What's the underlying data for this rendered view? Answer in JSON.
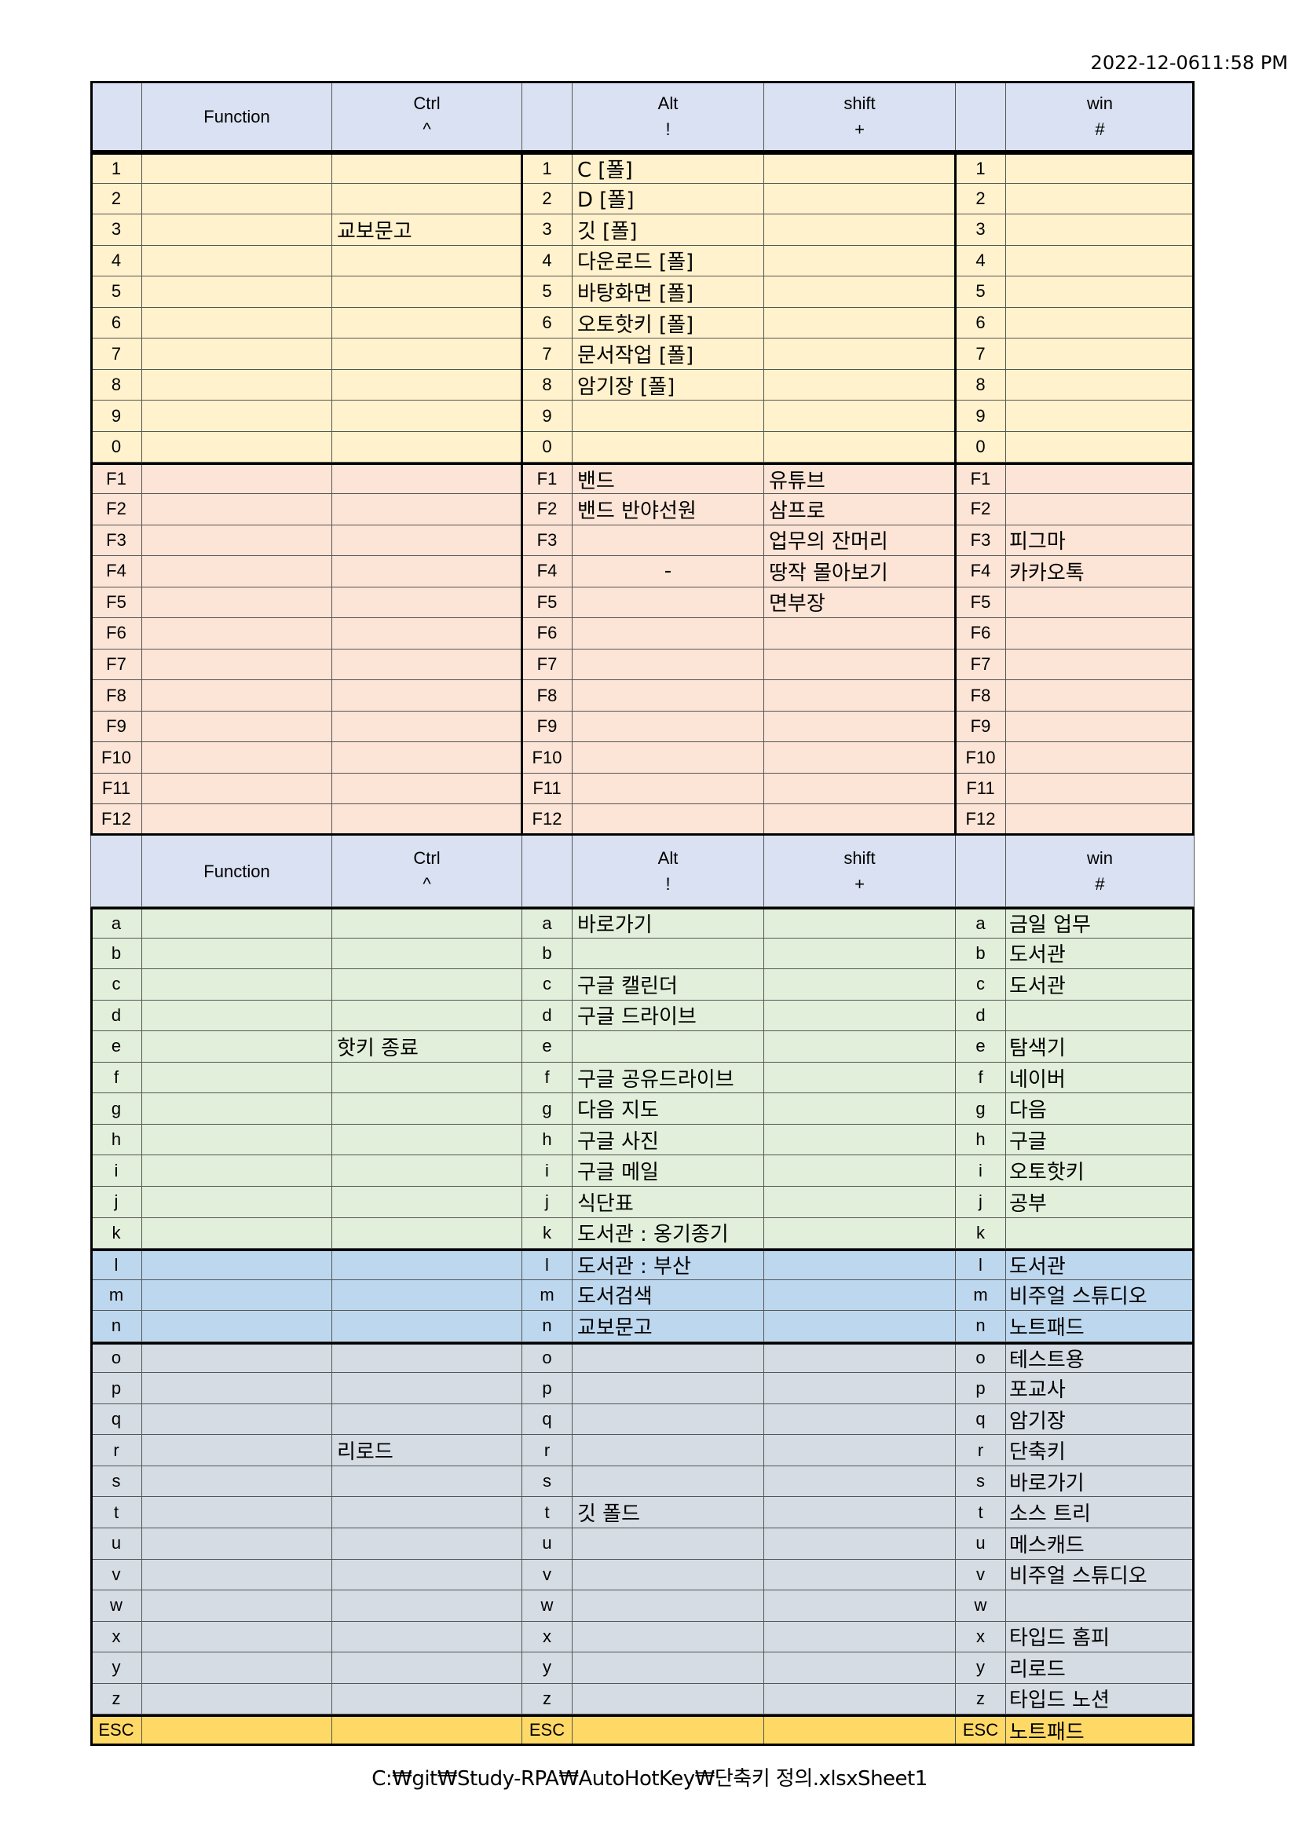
{
  "timestamp": "2022-12-0611:58 PM",
  "footer": "C:₩git₩Study-RPA₩AutoHotKey₩단축키 정의.xlsxSheet1",
  "colors": {
    "header": "#d9e1f2",
    "numbers": "#fff2cc",
    "function_keys": "#fce4d6",
    "letters_green": "#e2efda",
    "letters_blue": "#bdd7ee",
    "letters_gray": "#d6dce4",
    "escape": "#ffd966"
  },
  "header": {
    "function": "Function",
    "ctrl": "Ctrl",
    "ctrl_symbol": "^",
    "alt": "Alt",
    "alt_symbol": "!",
    "shift": "shift",
    "shift_symbol": "+",
    "win": "win",
    "win_symbol": "#"
  },
  "rows_top": [
    {
      "key": "1",
      "fn": "",
      "ctrl": "",
      "alt": "C [폴]",
      "shift": "",
      "win": "",
      "group": "numbers"
    },
    {
      "key": "2",
      "fn": "",
      "ctrl": "",
      "alt": "D [폴]",
      "shift": "",
      "win": "",
      "group": "numbers"
    },
    {
      "key": "3",
      "fn": "",
      "ctrl": "교보문고",
      "alt": "깃 [폴]",
      "shift": "",
      "win": "",
      "group": "numbers"
    },
    {
      "key": "4",
      "fn": "",
      "ctrl": "",
      "alt": "다운로드 [폴]",
      "shift": "",
      "win": "",
      "group": "numbers"
    },
    {
      "key": "5",
      "fn": "",
      "ctrl": "",
      "alt": "바탕화면 [폴]",
      "shift": "",
      "win": "",
      "group": "numbers"
    },
    {
      "key": "6",
      "fn": "",
      "ctrl": "",
      "alt": "오토핫키 [폴]",
      "shift": "",
      "win": "",
      "group": "numbers"
    },
    {
      "key": "7",
      "fn": "",
      "ctrl": "",
      "alt": "문서작업 [폴]",
      "shift": "",
      "win": "",
      "group": "numbers"
    },
    {
      "key": "8",
      "fn": "",
      "ctrl": "",
      "alt": "암기장 [폴]",
      "shift": "",
      "win": "",
      "group": "numbers"
    },
    {
      "key": "9",
      "fn": "",
      "ctrl": "",
      "alt": "",
      "shift": "",
      "win": "",
      "group": "numbers"
    },
    {
      "key": "0",
      "fn": "",
      "ctrl": "",
      "alt": "",
      "shift": "",
      "win": "",
      "group": "numbers"
    },
    {
      "key": "F1",
      "fn": "",
      "ctrl": "",
      "alt": "밴드",
      "shift": "유튜브",
      "win": "",
      "group": "function_keys"
    },
    {
      "key": "F2",
      "fn": "",
      "ctrl": "",
      "alt": "밴드 반야선원",
      "shift": "삼프로",
      "win": "",
      "group": "function_keys"
    },
    {
      "key": "F3",
      "fn": "",
      "ctrl": "",
      "alt": "",
      "shift": "업무의 잔머리",
      "win": "피그마",
      "group": "function_keys"
    },
    {
      "key": "F4",
      "fn": "",
      "ctrl": "",
      "alt": "-",
      "shift": "땅작 몰아보기",
      "win": "카카오톡",
      "group": "function_keys"
    },
    {
      "key": "F5",
      "fn": "",
      "ctrl": "",
      "alt": "",
      "shift": "면부장",
      "win": "",
      "group": "function_keys"
    },
    {
      "key": "F6",
      "fn": "",
      "ctrl": "",
      "alt": "",
      "shift": "",
      "win": "",
      "group": "function_keys"
    },
    {
      "key": "F7",
      "fn": "",
      "ctrl": "",
      "alt": "",
      "shift": "",
      "win": "",
      "group": "function_keys"
    },
    {
      "key": "F8",
      "fn": "",
      "ctrl": "",
      "alt": "",
      "shift": "",
      "win": "",
      "group": "function_keys"
    },
    {
      "key": "F9",
      "fn": "",
      "ctrl": "",
      "alt": "",
      "shift": "",
      "win": "",
      "group": "function_keys"
    },
    {
      "key": "F10",
      "fn": "",
      "ctrl": "",
      "alt": "",
      "shift": "",
      "win": "",
      "group": "function_keys"
    },
    {
      "key": "F11",
      "fn": "",
      "ctrl": "",
      "alt": "",
      "shift": "",
      "win": "",
      "group": "function_keys"
    },
    {
      "key": "F12",
      "fn": "",
      "ctrl": "",
      "alt": "",
      "shift": "",
      "win": "",
      "group": "function_keys"
    }
  ],
  "rows_bottom": [
    {
      "key": "a",
      "fn": "",
      "ctrl": "",
      "alt": "바로가기",
      "shift": "",
      "win": "금일 업무",
      "group": "letters_green"
    },
    {
      "key": "b",
      "fn": "",
      "ctrl": "",
      "alt": "",
      "shift": "",
      "win": "도서관",
      "group": "letters_green"
    },
    {
      "key": "c",
      "fn": "",
      "ctrl": "",
      "alt": "구글 캘린더",
      "shift": "",
      "win": "도서관",
      "group": "letters_green"
    },
    {
      "key": "d",
      "fn": "",
      "ctrl": "",
      "alt": "구글 드라이브",
      "shift": "",
      "win": "",
      "group": "letters_green"
    },
    {
      "key": "e",
      "fn": "",
      "ctrl": "핫키 종료",
      "alt": "",
      "shift": "",
      "win": "탐색기",
      "group": "letters_green"
    },
    {
      "key": "f",
      "fn": "",
      "ctrl": "",
      "alt": "구글 공유드라이브",
      "shift": "",
      "win": "네이버",
      "group": "letters_green"
    },
    {
      "key": "g",
      "fn": "",
      "ctrl": "",
      "alt": "다음 지도",
      "shift": "",
      "win": "다음",
      "group": "letters_green"
    },
    {
      "key": "h",
      "fn": "",
      "ctrl": "",
      "alt": "구글 사진",
      "shift": "",
      "win": "구글",
      "group": "letters_green"
    },
    {
      "key": "i",
      "fn": "",
      "ctrl": "",
      "alt": "구글 메일",
      "shift": "",
      "win": "오토핫키",
      "group": "letters_green"
    },
    {
      "key": "j",
      "fn": "",
      "ctrl": "",
      "alt": "식단표",
      "shift": "",
      "win": "공부",
      "group": "letters_green"
    },
    {
      "key": "k",
      "fn": "",
      "ctrl": "",
      "alt": "도서관 : 옹기종기",
      "shift": "",
      "win": "",
      "group": "letters_green"
    },
    {
      "key": "l",
      "fn": "",
      "ctrl": "",
      "alt": "도서관 : 부산",
      "shift": "",
      "win": "도서관",
      "group": "letters_blue"
    },
    {
      "key": "m",
      "fn": "",
      "ctrl": "",
      "alt": "도서검색",
      "shift": "",
      "win": "비주얼 스튜디오",
      "group": "letters_blue"
    },
    {
      "key": "n",
      "fn": "",
      "ctrl": "",
      "alt": "교보문고",
      "shift": "",
      "win": "노트패드",
      "group": "letters_blue"
    },
    {
      "key": "o",
      "fn": "",
      "ctrl": "",
      "alt": "",
      "shift": "",
      "win": "테스트용",
      "group": "letters_gray"
    },
    {
      "key": "p",
      "fn": "",
      "ctrl": "",
      "alt": "",
      "shift": "",
      "win": "포교사",
      "group": "letters_gray"
    },
    {
      "key": "q",
      "fn": "",
      "ctrl": "",
      "alt": "",
      "shift": "",
      "win": "암기장",
      "group": "letters_gray"
    },
    {
      "key": "r",
      "fn": "",
      "ctrl": "리로드",
      "alt": "",
      "shift": "",
      "win": "단축키",
      "group": "letters_gray"
    },
    {
      "key": "s",
      "fn": "",
      "ctrl": "",
      "alt": "",
      "shift": "",
      "win": "바로가기",
      "group": "letters_gray"
    },
    {
      "key": "t",
      "fn": "",
      "ctrl": "",
      "alt": "깃 폴드",
      "shift": "",
      "win": "소스 트리",
      "group": "letters_gray"
    },
    {
      "key": "u",
      "fn": "",
      "ctrl": "",
      "alt": "",
      "shift": "",
      "win": "메스캐드",
      "group": "letters_gray"
    },
    {
      "key": "v",
      "fn": "",
      "ctrl": "",
      "alt": "",
      "shift": "",
      "win": "비주얼 스튜디오",
      "group": "letters_gray"
    },
    {
      "key": "w",
      "fn": "",
      "ctrl": "",
      "alt": "",
      "shift": "",
      "win": "",
      "group": "letters_gray"
    },
    {
      "key": "x",
      "fn": "",
      "ctrl": "",
      "alt": "",
      "shift": "",
      "win": "타입드 홈피",
      "group": "letters_gray"
    },
    {
      "key": "y",
      "fn": "",
      "ctrl": "",
      "alt": "",
      "shift": "",
      "win": "리로드",
      "group": "letters_gray"
    },
    {
      "key": "z",
      "fn": "",
      "ctrl": "",
      "alt": "",
      "shift": "",
      "win": "타입드 노션",
      "group": "letters_gray"
    },
    {
      "key": "ESC",
      "fn": "",
      "ctrl": "",
      "alt": "",
      "shift": "",
      "win": "노트패드",
      "group": "escape"
    }
  ]
}
